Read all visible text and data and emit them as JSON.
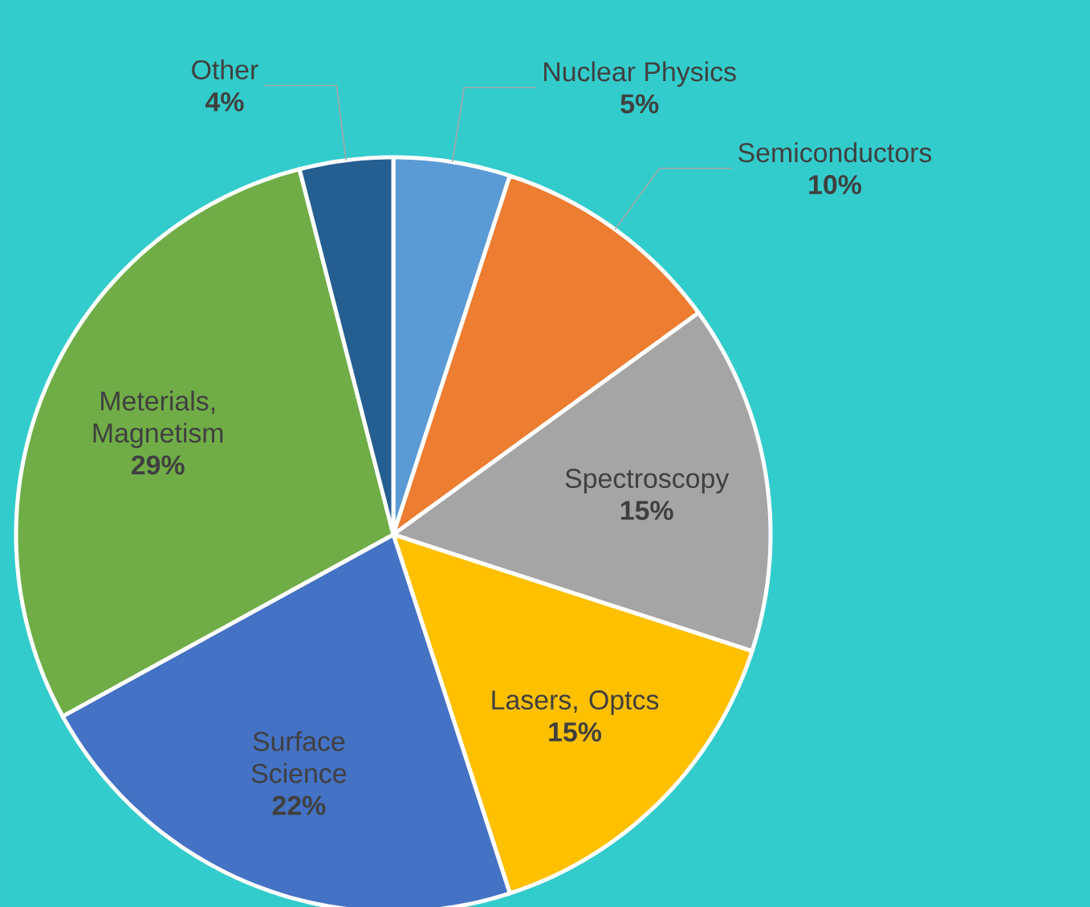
{
  "chart_data": {
    "type": "pie",
    "categories": [
      "Nuclear Physics",
      "Semiconductors",
      "Spectroscopy",
      "Lasers, Optcs",
      "Surface Science",
      "Meterials, Magnetism",
      "Other"
    ],
    "values": [
      5,
      10,
      15,
      15,
      22,
      29,
      4
    ],
    "value_labels": [
      "5%",
      "10%",
      "15%",
      "15%",
      "22%",
      "29%",
      "4%"
    ],
    "colors": [
      "#5b9bd5",
      "#ed7d31",
      "#a5a5a5",
      "#ffc000",
      "#4472c4",
      "#70ad47",
      "#255e91"
    ]
  }
}
